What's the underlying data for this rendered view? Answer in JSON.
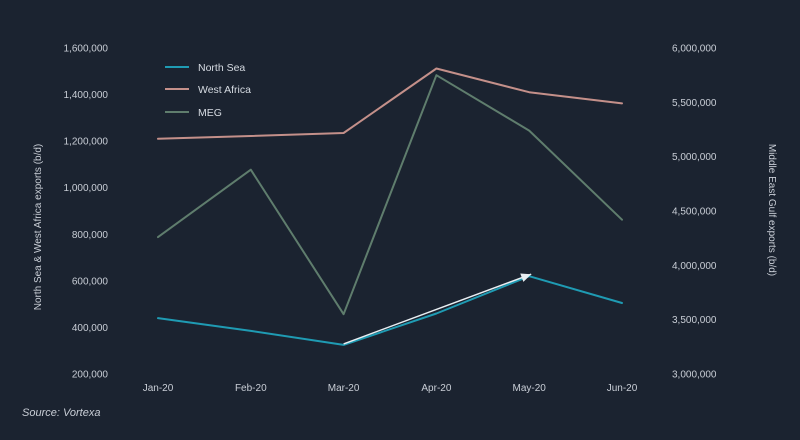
{
  "chart_data": {
    "type": "line",
    "categories": [
      "Jan-20",
      "Feb-20",
      "Mar-20",
      "Apr-20",
      "May-20",
      "Jun-20"
    ],
    "series": [
      {
        "name": "North Sea",
        "axis": "left",
        "color": "#1f9bb3",
        "values": [
          440000,
          385000,
          325000,
          460000,
          620000,
          505000
        ]
      },
      {
        "name": "West Africa",
        "axis": "left",
        "color": "#c4908a",
        "values": [
          1210000,
          1222000,
          1235000,
          1512000,
          1410000,
          1362000
        ]
      },
      {
        "name": "MEG",
        "axis": "right",
        "color": "#5f7d6d",
        "values": [
          4260000,
          4880000,
          3550000,
          5750000,
          5240000,
          4420000
        ]
      }
    ],
    "left_axis": {
      "label": "North Sea & West Africa exports (b/d)",
      "min": 200000,
      "max": 1600000,
      "step": 200000,
      "tick_labels": [
        "200,000",
        "400,000",
        "600,000",
        "800,000",
        "1,000,000",
        "1,200,000",
        "1,400,000",
        "1,600,000"
      ]
    },
    "right_axis": {
      "label": "Middle East Gulf exports (b/d)",
      "min": 3000000,
      "max": 6000000,
      "step": 500000,
      "tick_labels": [
        "3,000,000",
        "3,500,000",
        "4,000,000",
        "4,500,000",
        "5,000,000",
        "5,500,000",
        "6,000,000"
      ]
    },
    "annotation": {
      "type": "arrow",
      "from": "Mar-20",
      "to": "May-20",
      "series": "North Sea",
      "color": "#e8eef2"
    },
    "legend_position": "top-left",
    "grid": false,
    "background": "#1b2330",
    "source": "Source: Vortexa"
  }
}
